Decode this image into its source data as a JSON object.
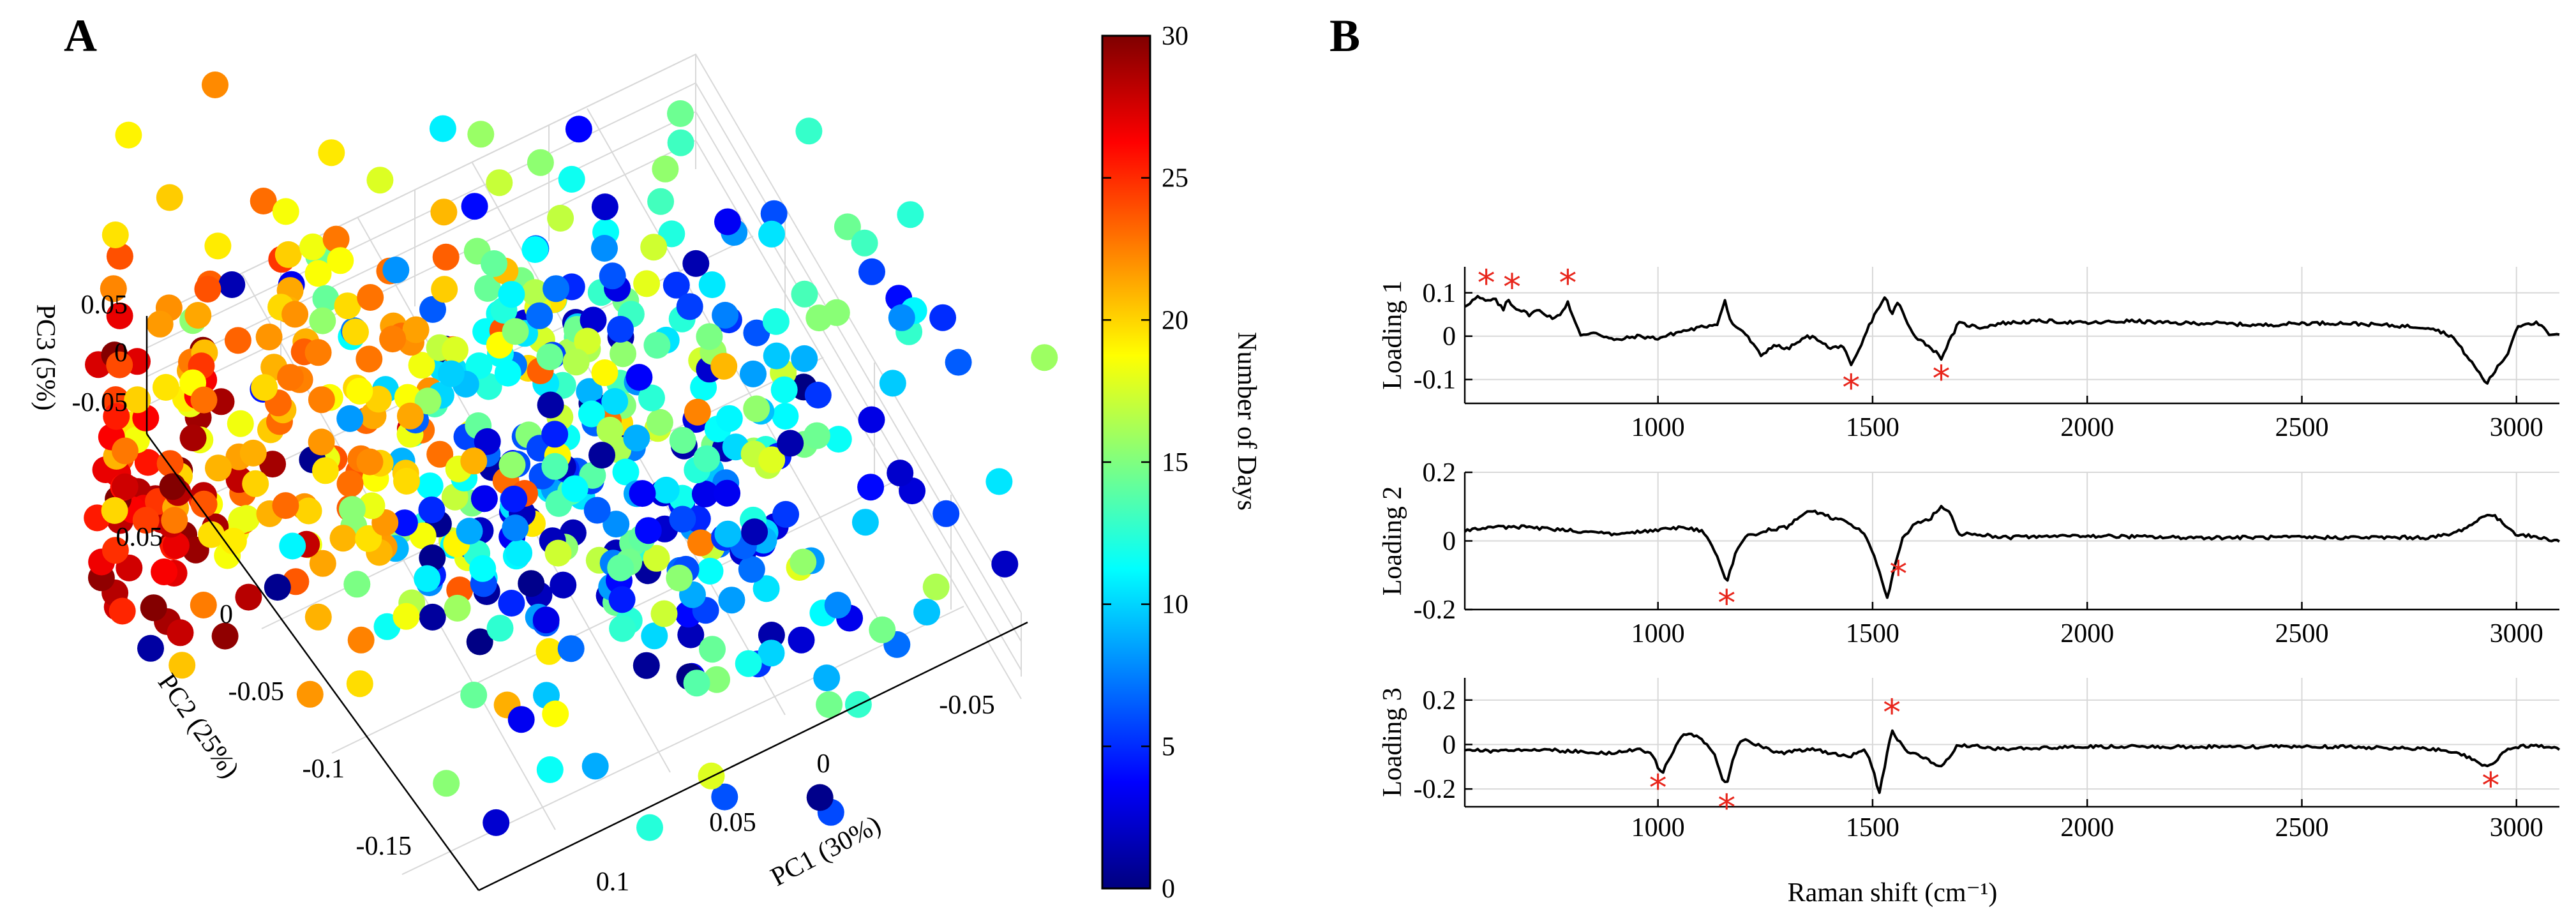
{
  "panels": {
    "a": {
      "letter": "A"
    },
    "b": {
      "letter": "B"
    }
  },
  "chart_data": [
    {
      "type": "scatter",
      "title": "",
      "projection": "3d",
      "xlabel": "PC1 (30%)",
      "ylabel": "PC2 (25%)",
      "zlabel": "PC3 (5%)",
      "xlim": [
        -0.1,
        0.12
      ],
      "ylim": [
        -0.18,
        0.07
      ],
      "zlim": [
        -0.07,
        0.07
      ],
      "xticks": [
        -0.05,
        0,
        0.05,
        0.1
      ],
      "xtick_labels": [
        "-0.05",
        "0",
        "0.05",
        "0.1"
      ],
      "yticks": [
        -0.15,
        -0.1,
        -0.05,
        0,
        0.05
      ],
      "ytick_labels": [
        "-0.15",
        "-0.1",
        "-0.05",
        "0",
        "0.05"
      ],
      "zticks": [
        -0.05,
        0,
        0.05
      ],
      "ztick_labels": [
        "-0.05",
        "0",
        "0.05"
      ],
      "grid": true,
      "color_by": "Number of Days",
      "colormap": "jet",
      "colorbar": {
        "label": "Number of Days",
        "range": [
          0,
          30
        ],
        "ticks": [
          0,
          5,
          10,
          15,
          20,
          25,
          30
        ],
        "tick_labels": [
          "0",
          "5",
          "10",
          "15",
          "20",
          "25",
          "30"
        ]
      },
      "clusters": [
        {
          "day_range": [
            24,
            30
          ],
          "center": [
            0.095,
            0.02,
            0.005
          ],
          "spread": [
            0.03,
            0.03,
            0.02
          ],
          "count": 230
        },
        {
          "day_range": [
            18,
            24
          ],
          "center": [
            0.04,
            0.01,
            0.0
          ],
          "spread": [
            0.045,
            0.045,
            0.025
          ],
          "count": 170
        },
        {
          "day_range": [
            10,
            18
          ],
          "center": [
            0.0,
            -0.02,
            0.0
          ],
          "spread": [
            0.05,
            0.05,
            0.025
          ],
          "count": 190
        },
        {
          "day_range": [
            0,
            10
          ],
          "center": [
            0.0,
            -0.03,
            -0.005
          ],
          "spread": [
            0.045,
            0.05,
            0.025
          ],
          "count": 190
        }
      ]
    },
    {
      "type": "line",
      "title": "",
      "xlabel": "Raman shift (cm⁻¹)",
      "x_range": [
        550,
        3100
      ],
      "xticks": [
        1000,
        1500,
        2000,
        2500,
        3000
      ],
      "xtick_labels": [
        "1000",
        "1500",
        "2000",
        "2500",
        "3000"
      ],
      "grid": true,
      "series": [
        {
          "name": "Loading 1",
          "ylabel": "Loading 1",
          "ylim": [
            -0.155,
            0.16
          ],
          "yticks": [
            -0.1,
            0,
            0.1
          ],
          "ytick_labels": [
            "-0.1",
            "0",
            "0.1"
          ],
          "x": [
            550,
            580,
            600,
            620,
            640,
            650,
            660,
            700,
            720,
            760,
            780,
            790,
            800,
            820,
            850,
            900,
            950,
            1000,
            1050,
            1100,
            1140,
            1155,
            1170,
            1200,
            1240,
            1270,
            1300,
            1350,
            1380,
            1400,
            1430,
            1450,
            1470,
            1490,
            1510,
            1530,
            1545,
            1560,
            1580,
            1600,
            1640,
            1660,
            1680,
            1700,
            1750,
            1800,
            1900,
            2000,
            2100,
            2200,
            2300,
            2400,
            2500,
            2600,
            2700,
            2800,
            2850,
            2880,
            2910,
            2930,
            2950,
            2980,
            3000,
            3020,
            3050,
            3080,
            3100
          ],
          "values": [
            0.07,
            0.09,
            0.08,
            0.085,
            0.06,
            0.09,
            0.07,
            0.05,
            0.06,
            0.04,
            0.06,
            0.08,
            0.05,
            0.0,
            0.01,
            -0.01,
            0.0,
            -0.005,
            0.01,
            0.02,
            0.03,
            0.085,
            0.03,
            0.01,
            -0.045,
            -0.02,
            -0.03,
            0.0,
            -0.01,
            -0.03,
            -0.02,
            -0.07,
            -0.03,
            0.02,
            0.06,
            0.09,
            0.05,
            0.08,
            0.03,
            0.0,
            -0.03,
            -0.05,
            -0.01,
            0.03,
            0.02,
            0.03,
            0.035,
            0.03,
            0.035,
            0.03,
            0.03,
            0.025,
            0.03,
            0.03,
            0.025,
            0.02,
            0.0,
            -0.04,
            -0.08,
            -0.11,
            -0.08,
            -0.04,
            0.02,
            0.03,
            0.03,
            0.0,
            0.005
          ]
        },
        {
          "name": "Loading 2",
          "ylabel": "Loading 2",
          "ylim": [
            -0.2,
            0.2
          ],
          "yticks": [
            -0.2,
            0,
            0.2
          ],
          "ytick_labels": [
            "-0.2",
            "0",
            "0.2"
          ],
          "x": [
            550,
            600,
            700,
            800,
            900,
            1000,
            1050,
            1100,
            1120,
            1140,
            1160,
            1180,
            1200,
            1250,
            1300,
            1350,
            1400,
            1450,
            1480,
            1500,
            1520,
            1535,
            1550,
            1570,
            1600,
            1630,
            1660,
            1680,
            1700,
            1750,
            1800,
            2000,
            2200,
            2400,
            2600,
            2800,
            2850,
            2900,
            2930,
            2950,
            2980,
            3000,
            3050,
            3100
          ],
          "values": [
            0.03,
            0.04,
            0.04,
            0.03,
            0.02,
            0.03,
            0.04,
            0.03,
            0.0,
            -0.05,
            -0.12,
            -0.04,
            0.01,
            0.03,
            0.04,
            0.09,
            0.07,
            0.05,
            0.02,
            -0.03,
            -0.11,
            -0.17,
            -0.08,
            0.01,
            0.05,
            0.06,
            0.1,
            0.08,
            0.02,
            0.02,
            0.01,
            0.015,
            0.01,
            0.01,
            0.01,
            0.01,
            0.02,
            0.05,
            0.08,
            0.07,
            0.04,
            0.02,
            0.01,
            0.0
          ]
        },
        {
          "name": "Loading 3",
          "ylabel": "Loading 3",
          "ylim": [
            -0.28,
            0.3
          ],
          "yticks": [
            -0.2,
            0,
            0.2
          ],
          "ytick_labels": [
            "-0.2",
            "0",
            "0.2"
          ],
          "x": [
            550,
            600,
            700,
            800,
            900,
            950,
            990,
            1000,
            1010,
            1030,
            1060,
            1100,
            1130,
            1150,
            1160,
            1175,
            1190,
            1210,
            1230,
            1280,
            1320,
            1360,
            1400,
            1450,
            1480,
            1500,
            1515,
            1530,
            1545,
            1560,
            1580,
            1620,
            1660,
            1700,
            1750,
            1800,
            2000,
            2200,
            2400,
            2600,
            2800,
            2850,
            2880,
            2900,
            2930,
            2950,
            2970,
            3000,
            3050,
            3100
          ],
          "values": [
            -0.02,
            -0.03,
            -0.02,
            -0.03,
            -0.04,
            -0.02,
            -0.05,
            -0.1,
            -0.13,
            -0.05,
            0.05,
            0.03,
            -0.04,
            -0.15,
            -0.19,
            -0.06,
            0.01,
            0.02,
            0.0,
            -0.04,
            -0.03,
            -0.02,
            -0.04,
            -0.05,
            -0.02,
            -0.1,
            -0.22,
            -0.08,
            0.06,
            0.02,
            -0.03,
            -0.06,
            -0.1,
            0.0,
            -0.01,
            -0.02,
            -0.01,
            -0.01,
            -0.01,
            -0.01,
            -0.02,
            -0.03,
            -0.05,
            -0.07,
            -0.1,
            -0.08,
            -0.03,
            -0.01,
            -0.005,
            -0.02
          ]
        }
      ],
      "annotations": {
        "marker": "*",
        "color": "#e8261c",
        "Loading 1": [
          600,
          660,
          790,
          1450,
          1660
        ],
        "Loading 2": [
          1160,
          1560
        ],
        "Loading 3": [
          1000,
          1160,
          1545,
          2940
        ]
      }
    }
  ]
}
